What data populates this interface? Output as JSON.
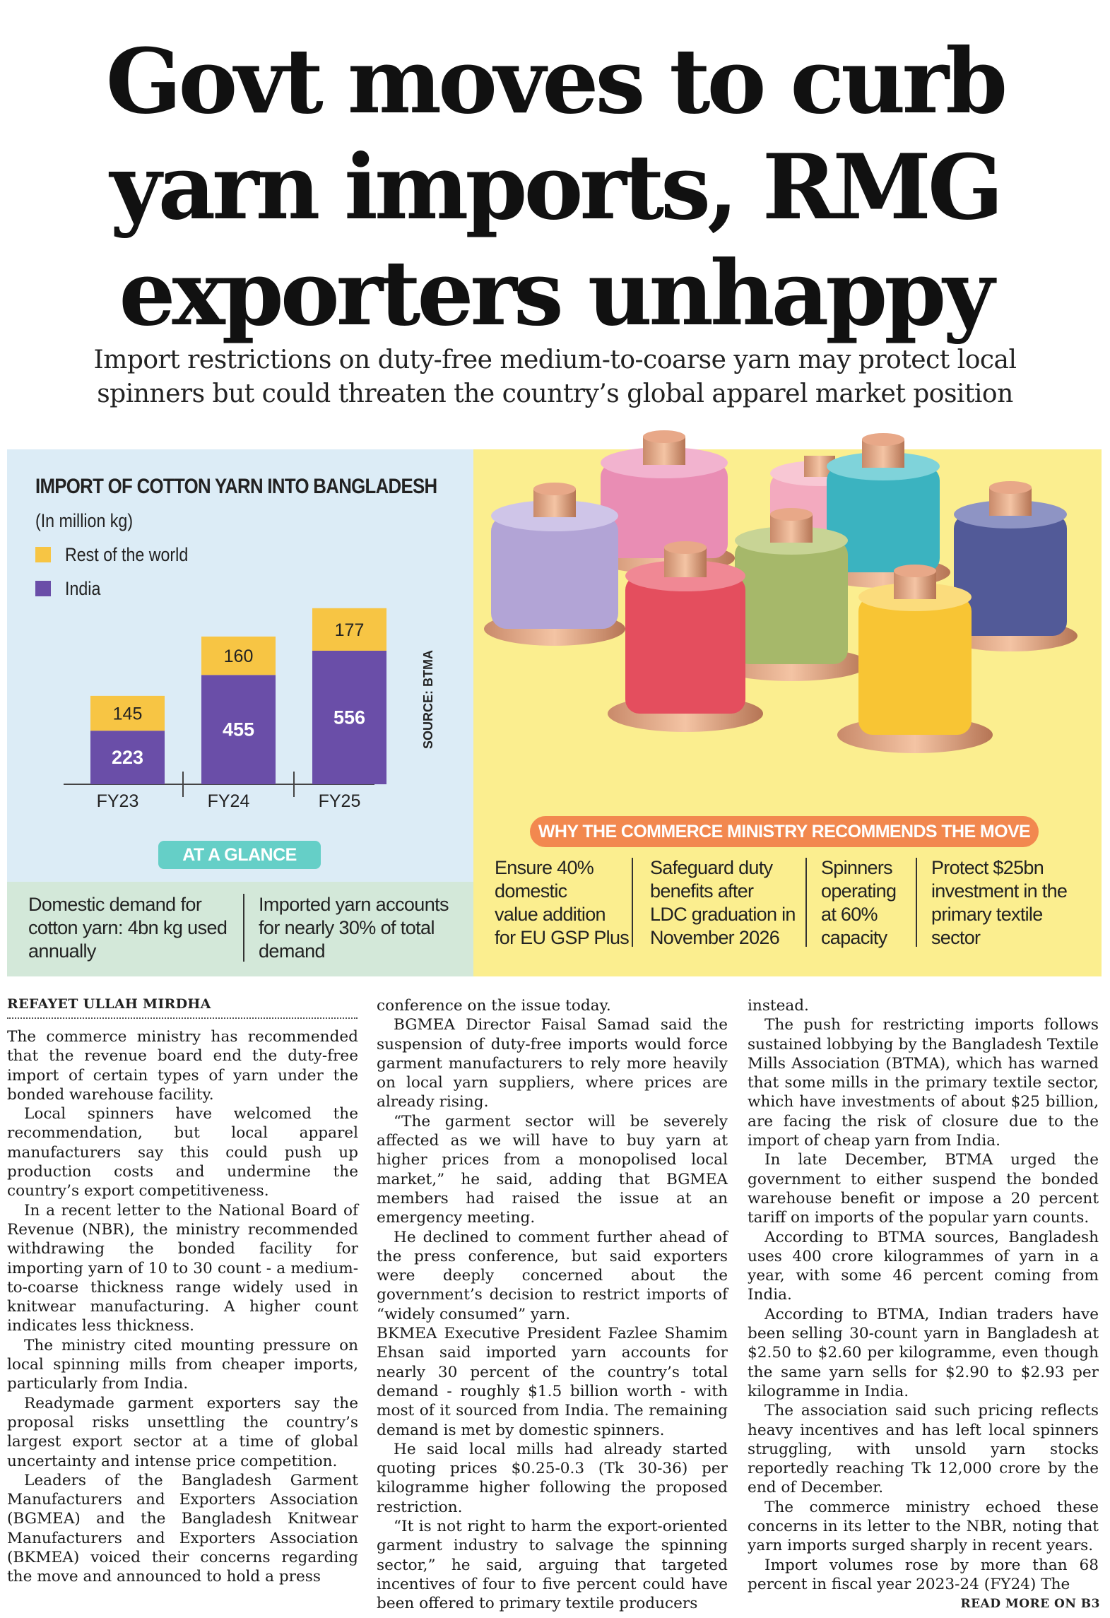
{
  "headline": {
    "line1": "Govt moves to curb",
    "line2": "yarn imports, RMG",
    "line3": "exporters unhappy"
  },
  "subhead": {
    "line1": "Import restrictions on duty-free medium-to-coarse yarn may protect local",
    "line2": "spinners but could threaten the country’s global apparel market position"
  },
  "chart_data": {
    "type": "bar",
    "stacked": true,
    "title": "IMPORT OF COTTON YARN INTO BANGLADESH",
    "unit": "(In million kg)",
    "categories": [
      "FY23",
      "FY24",
      "FY25"
    ],
    "series": [
      {
        "name": "India",
        "values": [
          223,
          455,
          556
        ],
        "color": "#6a4ea8"
      },
      {
        "name": "Rest of the world",
        "values": [
          145,
          160,
          177
        ],
        "color": "#f7c544"
      }
    ],
    "source": "SOURCE: BTMA"
  },
  "glance": {
    "badge": "AT A GLANCE",
    "item1": [
      "Domestic demand for",
      "cotton yarn: 4bn kg used",
      "annually"
    ],
    "item2": [
      "Imported yarn accounts",
      "for nearly 30% of total",
      "demand"
    ]
  },
  "why": {
    "badge": "WHY THE COMMERCE MINISTRY RECOMMENDS THE MOVE",
    "items": [
      [
        "Ensure 40%",
        "domestic",
        "value addition",
        "for EU GSP Plus"
      ],
      [
        "Safeguard duty",
        "benefits after",
        "LDC graduation in",
        "November 2026"
      ],
      [
        "Spinners",
        "operating",
        "at 60%",
        "capacity"
      ],
      [
        "Protect $25bn",
        "investment in the",
        "primary textile",
        "sector"
      ]
    ]
  },
  "colors": {
    "india": "#6a4ea8",
    "rest": "#f7c544",
    "panel_blue": "#dcecf6",
    "panel_green": "#d3e8d9",
    "panel_yellow": "#fbee8f",
    "badge_teal": "#65cfc7",
    "badge_orange": "#f2884f"
  },
  "article": {
    "byline": "REFAYET ULLAH MIRDHA",
    "col1": [
      "The commerce ministry has recommended that the revenue board end the duty-free import of certain types of yarn under the bonded warehouse facility.",
      "Local spinners have welcomed the recommendation, but local apparel manufacturers say this could push up production costs and undermine the country’s export competitiveness.",
      "In a recent letter to the National Board of Revenue (NBR), the ministry recommended withdrawing the bonded facility for importing yarn of 10 to 30 count - a medium-to-coarse thickness range widely used in knitwear manufacturing. A higher count indicates less thickness.",
      "The ministry cited mounting pressure on local spinning mills from cheaper imports, particularly from India.",
      "Readymade garment exporters say the proposal risks unsettling the country’s largest export sector at a time of global uncertainty and intense price competition.",
      "Leaders of the Bangladesh Garment Manufacturers and Exporters Association (BGMEA) and the Bangladesh Knitwear Manufacturers and Exporters Association (BKMEA) voiced their concerns regarding the move and announced to hold a press"
    ],
    "col2": [
      "conference on the issue today.",
      "BGMEA Director Faisal Samad said the suspension of duty-free imports would force garment manufacturers to rely more heavily on local yarn suppliers, where prices are already rising.",
      "“The garment sector will be severely affected as we will have to buy yarn at higher prices from a monopolised local market,” he said, adding that BGMEA members had raised the issue at an emergency meeting.",
      "He declined to comment further ahead of the press conference, but said exporters were deeply concerned about the government’s decision to restrict imports of “widely consumed” yarn.",
      "BKMEA Executive President Fazlee Shamim Ehsan said imported yarn accounts for nearly 30 percent of the country’s total demand - roughly $1.5 billion worth - with most of it sourced from India. The remaining demand is met by domestic spinners.",
      "He said local mills had already started quoting prices $0.25-0.3 (Tk 30-36) per kilogramme higher following the proposed restriction.",
      "“It is not right to harm the export-oriented garment industry to salvage the spinning sector,” he said, arguing that targeted incentives of four to five percent could have been offered to primary textile producers"
    ],
    "col3": [
      "instead.",
      "The push for restricting imports follows sustained lobbying by the Bangladesh Textile Mills Association (BTMA), which has warned that some mills in the primary textile sector, which have investments of about $25 billion, are facing the risk of closure due to the import of cheap yarn from India.",
      "In late December, BTMA urged the government to either suspend the bonded warehouse benefit or impose a 20 percent tariff on imports of the popular yarn counts.",
      "According to BTMA sources, Bangladesh uses 400 crore kilogrammes of yarn in a year, with some 46 percent coming from India.",
      "According to BTMA, Indian traders have been selling 30-count yarn in Bangladesh at $2.50 to $2.60 per kilogramme, even though the same yarn sells for $2.90 to $2.93 per kilogramme in India.",
      "The association said such pricing reflects heavy incentives and has left local spinners struggling, with unsold yarn stocks reportedly reaching Tk 12,000 crore by the end of December.",
      "The commerce ministry echoed these concerns in its letter to the NBR, noting that yarn imports surged sharply in recent years.",
      "Import volumes rose by more than 68 percent in fiscal year 2023-24 (FY24) The"
    ],
    "read_more": "READ MORE ON B3"
  }
}
